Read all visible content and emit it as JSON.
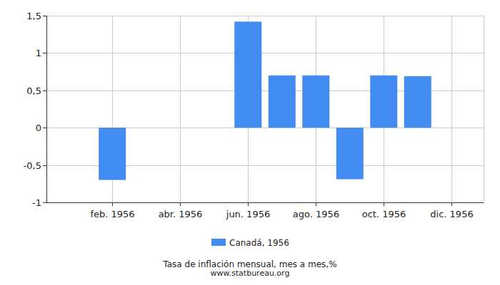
{
  "chart_data": {
    "type": "bar",
    "title": "Tasa de inflación mensual, mes a mes,%",
    "subtitle": "www.statbureau.org",
    "categories": [
      null,
      "feb. 1956",
      null,
      "abr. 1956",
      null,
      "jun. 1956",
      null,
      "ago. 1956",
      null,
      "oct. 1956",
      null,
      "dic. 1956"
    ],
    "series": [
      {
        "name": "Canadá, 1956",
        "color": "#428bf0",
        "values": [
          0,
          -0.7,
          0,
          0,
          0,
          1.42,
          0.7,
          0.7,
          -0.69,
          0.7,
          0.69,
          0
        ]
      }
    ],
    "ylim": [
      -1,
      1.5
    ],
    "yticks": [
      -1,
      {
        "value": -0.5,
        "label": "-0,5"
      },
      0,
      {
        "value": 0.5,
        "label": "0,5"
      },
      1,
      {
        "value": 1.5,
        "label": "1,5"
      }
    ],
    "grid": true,
    "legend": "bottom"
  }
}
